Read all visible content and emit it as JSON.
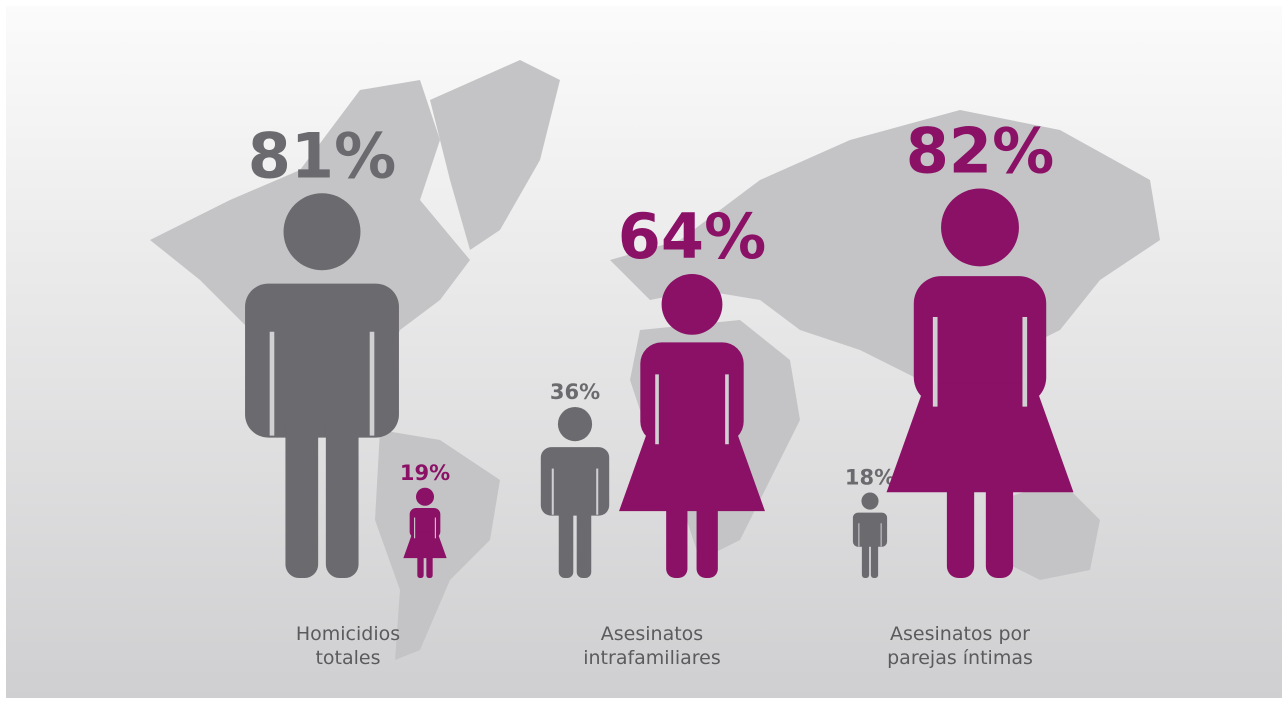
{
  "chart_data": {
    "type": "pictograph",
    "categories": [
      [
        "Homicidios",
        "totales"
      ],
      [
        "Asesinatos",
        "intrafamiliares"
      ],
      [
        "Asesinatos por",
        "parejas íntimas"
      ]
    ],
    "series": [
      {
        "color": "#6b6a6e",
        "values": [
          81,
          36,
          18
        ],
        "value_labels": [
          "81%",
          "36%",
          "18%"
        ]
      },
      {
        "color": "#8a1166",
        "values": [
          19,
          64,
          82
        ],
        "value_labels": [
          "19%",
          "64%",
          "82%"
        ]
      }
    ]
  }
}
